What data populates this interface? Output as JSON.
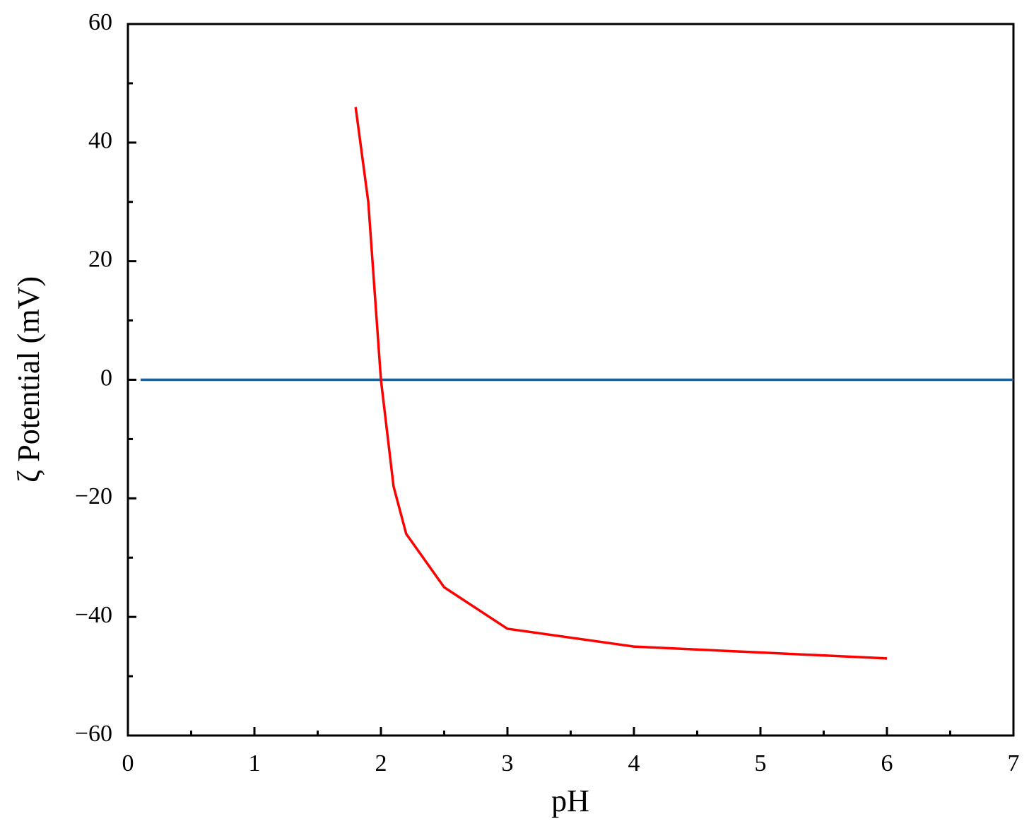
{
  "chart_data": {
    "type": "line",
    "xlabel": "pH",
    "ylabel": "ζ Potential (mV)",
    "series": [
      {
        "color": "#ff0000",
        "x": [
          1.8,
          1.9,
          2.0,
          2.1,
          2.2,
          2.5,
          3,
          4,
          5,
          6
        ],
        "values": [
          46,
          30,
          0,
          -18,
          -26,
          -35,
          -42,
          -45,
          -46,
          -47
        ]
      },
      {
        "color": "#1a5e9a",
        "x": [
          0.1,
          7
        ],
        "values": [
          0,
          0
        ]
      }
    ],
    "xlim": [
      0,
      7
    ],
    "xticks": [
      0,
      1,
      2,
      3,
      4,
      5,
      6,
      7
    ],
    "xminorticks": [
      0.5,
      1.5,
      2.5,
      3.5,
      4.5,
      5.5,
      6.5
    ],
    "ylim": [
      -60,
      60
    ],
    "yticks": [
      {
        "value": -60,
        "label": "−60"
      },
      {
        "value": -40,
        "label": "−40"
      },
      {
        "value": -20,
        "label": "−20"
      },
      0,
      20,
      40,
      60
    ],
    "yminorticks": [
      -50,
      -30,
      -10,
      10,
      30,
      50
    ],
    "grid": false
  }
}
